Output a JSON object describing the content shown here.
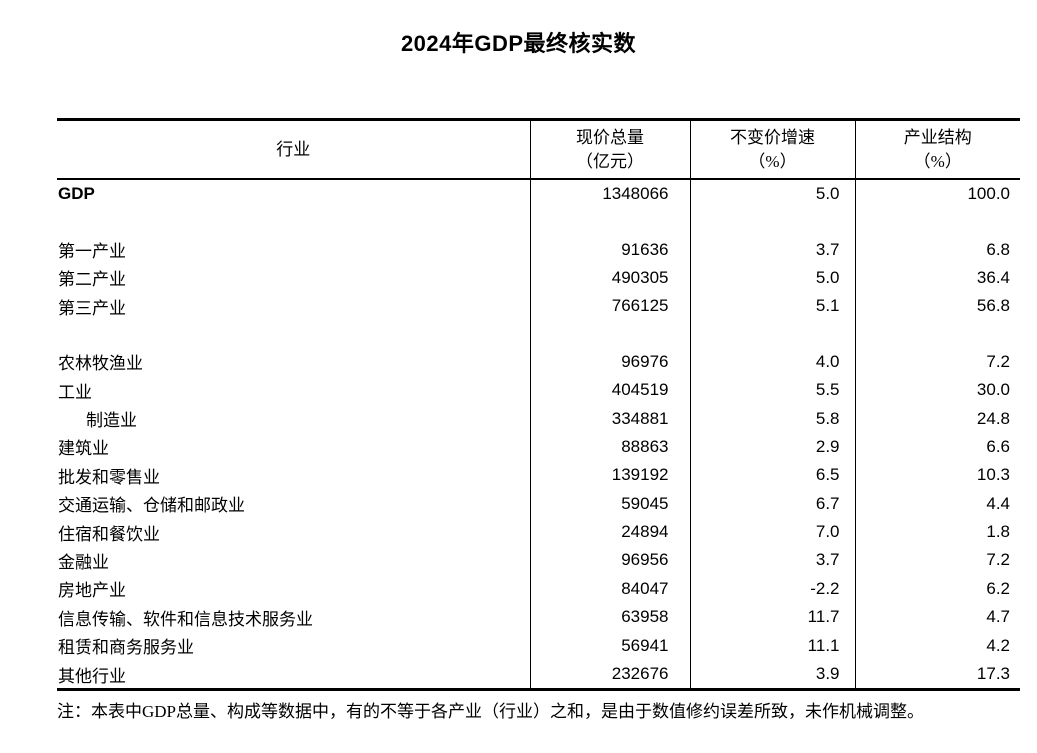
{
  "title": "2024年GDP最终核实数",
  "colors": {
    "background": "#ffffff",
    "text": "#000000",
    "border": "#000000"
  },
  "table": {
    "columns": [
      {
        "label": "行业",
        "unit": ""
      },
      {
        "label": "现价总量",
        "unit": "（亿元）"
      },
      {
        "label": "不变价增速",
        "unit": "（%）"
      },
      {
        "label": "产业结构",
        "unit": "（%）"
      }
    ],
    "rows": [
      {
        "label": "GDP",
        "values": [
          "1348066",
          "5.0",
          "100.0"
        ],
        "style": "latin"
      },
      {
        "spacer": true
      },
      {
        "label": "第一产业",
        "values": [
          "91636",
          "3.7",
          "6.8"
        ]
      },
      {
        "label": "第二产业",
        "values": [
          "490305",
          "5.0",
          "36.4"
        ]
      },
      {
        "label": "第三产业",
        "values": [
          "766125",
          "5.1",
          "56.8"
        ]
      },
      {
        "spacer": true
      },
      {
        "label": "农林牧渔业",
        "values": [
          "96976",
          "4.0",
          "7.2"
        ]
      },
      {
        "label": "工业",
        "values": [
          "404519",
          "5.5",
          "30.0"
        ]
      },
      {
        "label": "制造业",
        "values": [
          "334881",
          "5.8",
          "24.8"
        ],
        "indent": true
      },
      {
        "label": "建筑业",
        "values": [
          "88863",
          "2.9",
          "6.6"
        ]
      },
      {
        "label": "批发和零售业",
        "values": [
          "139192",
          "6.5",
          "10.3"
        ]
      },
      {
        "label": "交通运输、仓储和邮政业",
        "values": [
          "59045",
          "6.7",
          "4.4"
        ]
      },
      {
        "label": "住宿和餐饮业",
        "values": [
          "24894",
          "7.0",
          "1.8"
        ]
      },
      {
        "label": "金融业",
        "values": [
          "96956",
          "3.7",
          "7.2"
        ]
      },
      {
        "label": "房地产业",
        "values": [
          "84047",
          "-2.2",
          "6.2"
        ]
      },
      {
        "label": "信息传输、软件和信息技术服务业",
        "values": [
          "63958",
          "11.7",
          "4.7"
        ]
      },
      {
        "label": "租赁和商务服务业",
        "values": [
          "56941",
          "11.1",
          "4.2"
        ]
      },
      {
        "label": "其他行业",
        "values": [
          "232676",
          "3.9",
          "17.3"
        ]
      }
    ]
  },
  "note": "注：本表中GDP总量、构成等数据中，有的不等于各产业（行业）之和，是由于数值修约误差所致，未作机械调整。"
}
